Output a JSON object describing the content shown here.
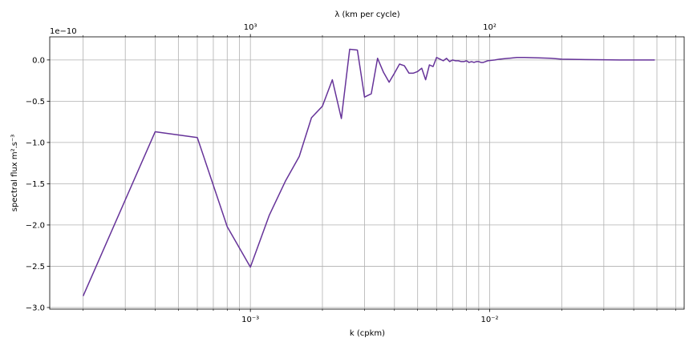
{
  "chart_data": {
    "type": "line",
    "xscale": "log",
    "xlabel": "k (cpkm)",
    "ylabel": "spectral flux m^2.s^-3",
    "ylabel_display": "spectral flux m².s⁻³",
    "top_xlabel": "λ (km per cycle)",
    "y_offset_label": "1e−10",
    "y_multiplier": 1e-10,
    "xlim": [
      0.000145,
      0.065
    ],
    "ylim": [
      -3.02,
      0.28
    ],
    "grid": true,
    "bottom_ticks": [
      {
        "value": 0.001,
        "label": "10⁻³"
      },
      {
        "value": 0.01,
        "label": "10⁻²"
      }
    ],
    "top_ticks": [
      {
        "value": 0.001,
        "label": "10³"
      },
      {
        "value": 0.01,
        "label": "10²"
      }
    ],
    "y_ticks": [
      {
        "value": 0.0,
        "label": "0.0"
      },
      {
        "value": -0.5,
        "label": "−0.5"
      },
      {
        "value": -1.0,
        "label": "−1.0"
      },
      {
        "value": -1.5,
        "label": "−1.5"
      },
      {
        "value": -2.0,
        "label": "−2.0"
      },
      {
        "value": -2.5,
        "label": "−2.5"
      },
      {
        "value": -3.0,
        "label": "−3.0"
      }
    ],
    "series": [
      {
        "color": "#663399",
        "x": [
          0.0002,
          0.0004,
          0.0006,
          0.0008,
          0.001,
          0.0012,
          0.0014,
          0.0016,
          0.0018,
          0.002,
          0.0022,
          0.0024,
          0.0026,
          0.0028,
          0.003,
          0.0032,
          0.0034,
          0.0036,
          0.0038,
          0.004,
          0.0042,
          0.0044,
          0.0046,
          0.0048,
          0.005,
          0.0052,
          0.0054,
          0.0056,
          0.0058,
          0.006,
          0.0062,
          0.0064,
          0.0066,
          0.0068,
          0.007,
          0.0072,
          0.0074,
          0.0076,
          0.0078,
          0.008,
          0.0082,
          0.0084,
          0.0086,
          0.0088,
          0.009,
          0.0092,
          0.0094,
          0.0096,
          0.0098,
          0.0105,
          0.011,
          0.012,
          0.013,
          0.014,
          0.016,
          0.018,
          0.02,
          0.025,
          0.03,
          0.035,
          0.04,
          0.045,
          0.049
        ],
        "y": [
          -2.86,
          -0.87,
          -0.94,
          -2.02,
          -2.51,
          -1.88,
          -1.47,
          -1.17,
          -0.7,
          -0.56,
          -0.24,
          -0.71,
          0.13,
          0.12,
          -0.45,
          -0.41,
          0.02,
          -0.15,
          -0.27,
          -0.16,
          -0.05,
          -0.07,
          -0.16,
          -0.16,
          -0.14,
          -0.1,
          -0.24,
          -0.06,
          -0.08,
          0.03,
          0.01,
          -0.01,
          0.02,
          -0.02,
          0.0,
          -0.01,
          -0.01,
          -0.02,
          -0.02,
          -0.01,
          -0.03,
          -0.02,
          -0.03,
          -0.02,
          -0.02,
          -0.03,
          -0.03,
          -0.02,
          -0.01,
          0.0,
          0.01,
          0.02,
          0.03,
          0.03,
          0.025,
          0.02,
          0.01,
          0.005,
          0.002,
          0.0,
          0.0,
          0.0,
          0.0
        ]
      }
    ]
  }
}
